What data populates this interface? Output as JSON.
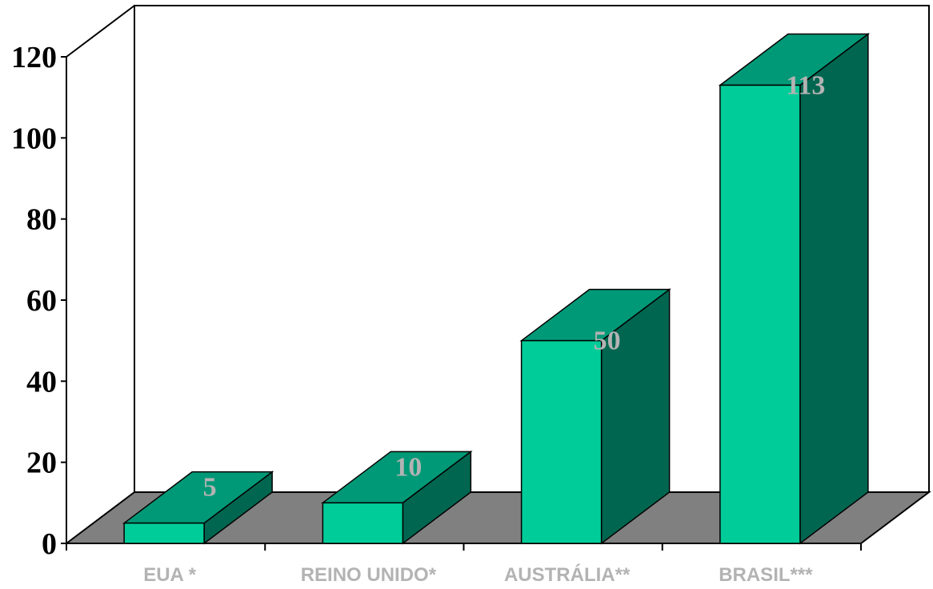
{
  "chart_data": {
    "type": "bar",
    "categories": [
      "EUA *",
      "REINO UNIDO*",
      "AUSTRÁLIA**",
      "BRASIL***"
    ],
    "values": [
      5,
      10,
      50,
      113
    ],
    "data_labels": [
      "5",
      "10",
      "50",
      "113"
    ],
    "y_ticks": [
      "0",
      "20",
      "40",
      "60",
      "80",
      "100",
      "120"
    ],
    "ylim": [
      0,
      120
    ],
    "title": "",
    "xlabel": "",
    "ylabel": "",
    "grid": false,
    "legend": "none",
    "colors": {
      "bar_front": "#00cc99",
      "bar_top": "#009977",
      "bar_side": "#006650",
      "floor": "#808080",
      "tick_label": "#000000",
      "category_label": "#b3b3b3",
      "data_label": "#b3b3b3"
    }
  }
}
